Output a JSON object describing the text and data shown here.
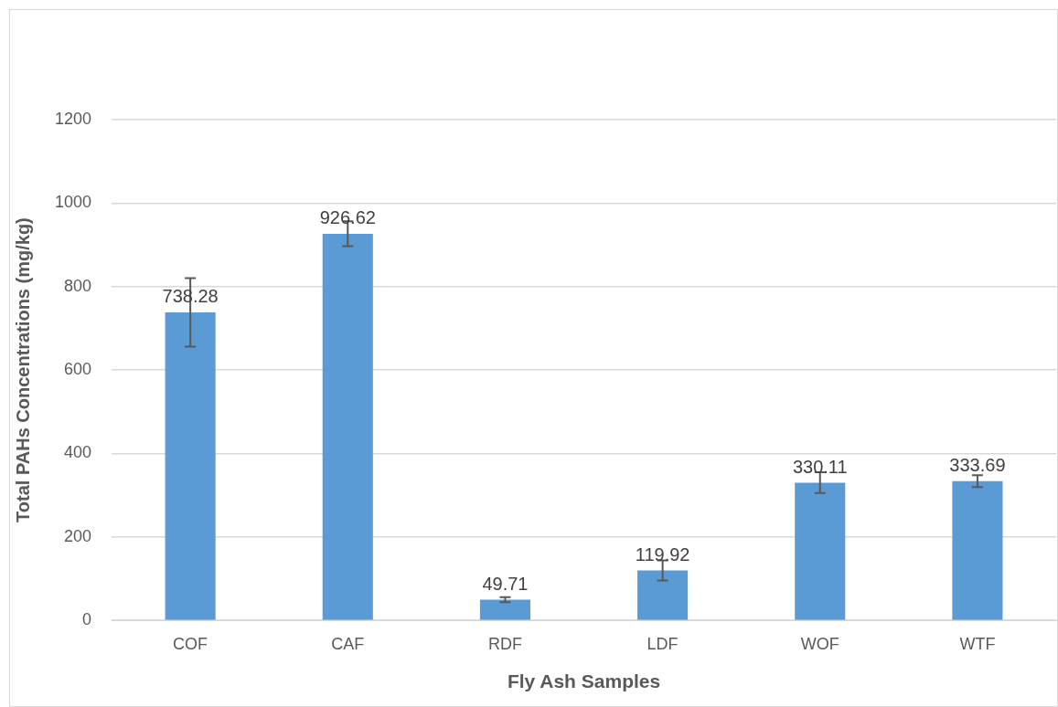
{
  "chart_data": {
    "type": "bar",
    "xlabel": "Fly Ash Samples",
    "ylabel": "Total PAHs Concentrations (mg/kg)",
    "categories": [
      "COF",
      "CAF",
      "RDF",
      "LDF",
      "WOF",
      "WTF"
    ],
    "values": [
      738.28,
      926.62,
      49.71,
      119.92,
      330.11,
      333.69
    ],
    "errors": [
      82,
      30,
      6,
      24,
      25,
      14
    ],
    "color": "#5b9bd5",
    "data_labels": true,
    "ylim": [
      0,
      1200
    ],
    "yticks": [
      0,
      200,
      400,
      600,
      800,
      1000,
      1200
    ],
    "grid": "y",
    "legend": false
  }
}
